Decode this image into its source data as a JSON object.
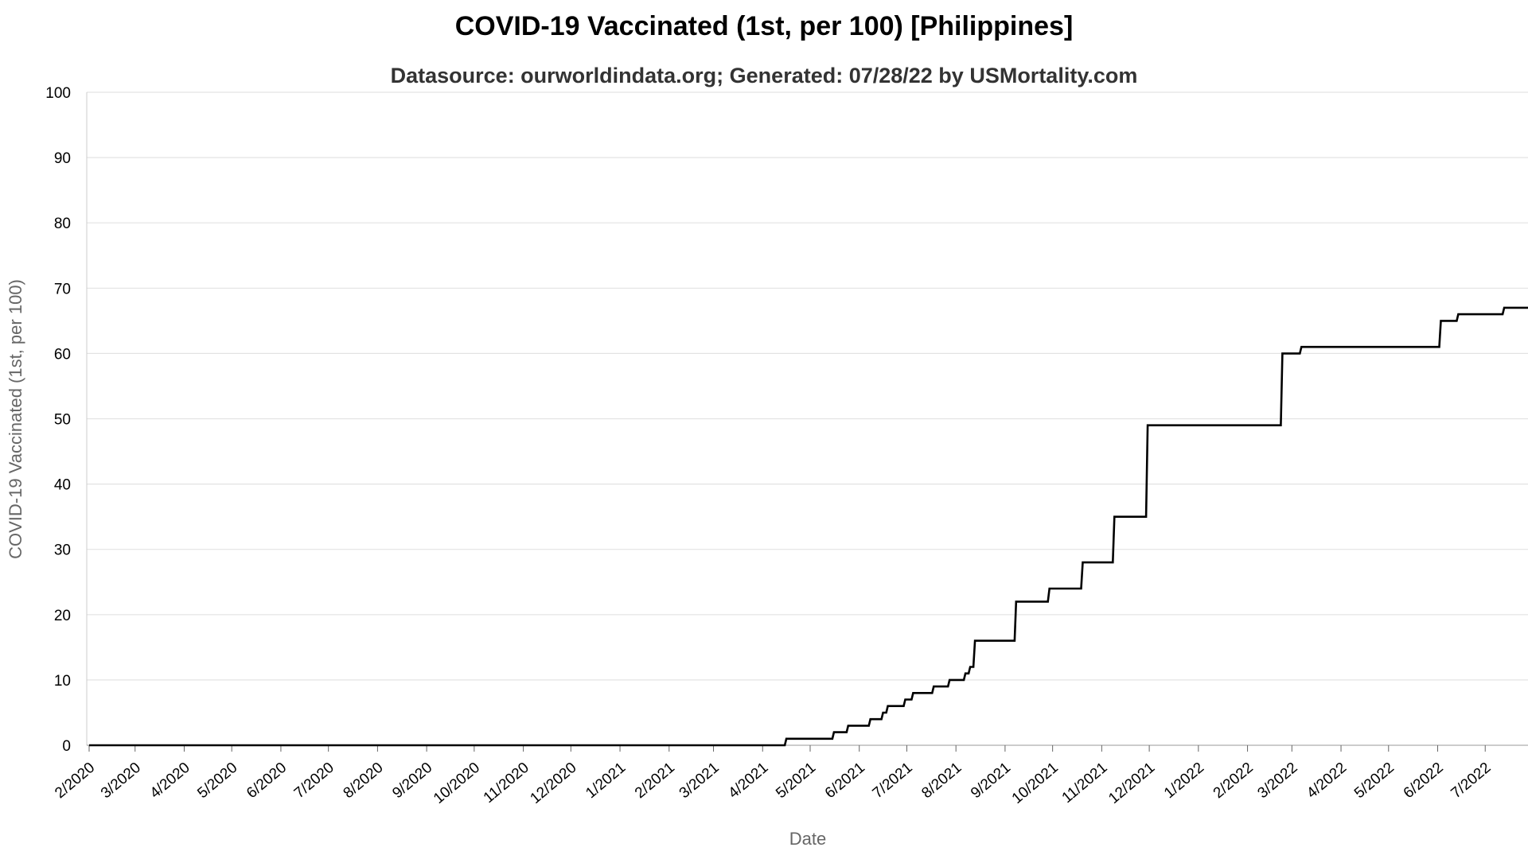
{
  "chart_data": {
    "type": "line",
    "title": "COVID-19 Vaccinated (1st, per 100) [Philippines]",
    "subtitle": "Datasource: ourworldindata.org; Generated: 07/28/22 by USMortality.com",
    "xlabel": "Date",
    "ylabel": "COVID-19 Vaccinated (1st, per 100)",
    "ylim": [
      0,
      100
    ],
    "yticks": [
      0,
      10,
      20,
      30,
      40,
      50,
      60,
      70,
      80,
      90,
      100
    ],
    "xlim": [
      "2020-02-01",
      "2022-07-28"
    ],
    "xticks": [
      {
        "date": "2020-02-01",
        "label": "2/2020"
      },
      {
        "date": "2020-03-01",
        "label": "3/2020"
      },
      {
        "date": "2020-04-01",
        "label": "4/2020"
      },
      {
        "date": "2020-05-01",
        "label": "5/2020"
      },
      {
        "date": "2020-06-01",
        "label": "6/2020"
      },
      {
        "date": "2020-07-01",
        "label": "7/2020"
      },
      {
        "date": "2020-08-01",
        "label": "8/2020"
      },
      {
        "date": "2020-09-01",
        "label": "9/2020"
      },
      {
        "date": "2020-10-01",
        "label": "10/2020"
      },
      {
        "date": "2020-11-01",
        "label": "11/2020"
      },
      {
        "date": "2020-12-01",
        "label": "12/2020"
      },
      {
        "date": "2021-01-01",
        "label": "1/2021"
      },
      {
        "date": "2021-02-01",
        "label": "2/2021"
      },
      {
        "date": "2021-03-01",
        "label": "3/2021"
      },
      {
        "date": "2021-04-01",
        "label": "4/2021"
      },
      {
        "date": "2021-05-01",
        "label": "5/2021"
      },
      {
        "date": "2021-06-01",
        "label": "6/2021"
      },
      {
        "date": "2021-07-01",
        "label": "7/2021"
      },
      {
        "date": "2021-08-01",
        "label": "8/2021"
      },
      {
        "date": "2021-09-01",
        "label": "9/2021"
      },
      {
        "date": "2021-10-01",
        "label": "10/2021"
      },
      {
        "date": "2021-11-01",
        "label": "11/2021"
      },
      {
        "date": "2021-12-01",
        "label": "12/2021"
      },
      {
        "date": "2022-01-01",
        "label": "1/2022"
      },
      {
        "date": "2022-02-01",
        "label": "2/2022"
      },
      {
        "date": "2022-03-01",
        "label": "3/2022"
      },
      {
        "date": "2022-04-01",
        "label": "4/2022"
      },
      {
        "date": "2022-05-01",
        "label": "5/2022"
      },
      {
        "date": "2022-06-01",
        "label": "6/2022"
      },
      {
        "date": "2022-07-01",
        "label": "7/2022"
      }
    ],
    "grid": true,
    "line_color": "#000000",
    "series": [
      {
        "step": true,
        "points": [
          {
            "x": "2020-02-01",
            "y": 0
          },
          {
            "x": "2021-04-15",
            "y": 0
          },
          {
            "x": "2021-04-16",
            "y": 1
          },
          {
            "x": "2021-05-15",
            "y": 1
          },
          {
            "x": "2021-05-16",
            "y": 2
          },
          {
            "x": "2021-05-24",
            "y": 2
          },
          {
            "x": "2021-05-25",
            "y": 3
          },
          {
            "x": "2021-06-07",
            "y": 3
          },
          {
            "x": "2021-06-08",
            "y": 4
          },
          {
            "x": "2021-06-15",
            "y": 4
          },
          {
            "x": "2021-06-16",
            "y": 5
          },
          {
            "x": "2021-06-18",
            "y": 5
          },
          {
            "x": "2021-06-19",
            "y": 6
          },
          {
            "x": "2021-06-29",
            "y": 6
          },
          {
            "x": "2021-06-30",
            "y": 7
          },
          {
            "x": "2021-07-04",
            "y": 7
          },
          {
            "x": "2021-07-05",
            "y": 8
          },
          {
            "x": "2021-07-17",
            "y": 8
          },
          {
            "x": "2021-07-18",
            "y": 9
          },
          {
            "x": "2021-07-27",
            "y": 9
          },
          {
            "x": "2021-07-28",
            "y": 10
          },
          {
            "x": "2021-08-06",
            "y": 10
          },
          {
            "x": "2021-08-07",
            "y": 11
          },
          {
            "x": "2021-08-09",
            "y": 11
          },
          {
            "x": "2021-08-10",
            "y": 12
          },
          {
            "x": "2021-08-12",
            "y": 12
          },
          {
            "x": "2021-08-13",
            "y": 16
          },
          {
            "x": "2021-09-07",
            "y": 16
          },
          {
            "x": "2021-09-08",
            "y": 22
          },
          {
            "x": "2021-09-28",
            "y": 22
          },
          {
            "x": "2021-09-29",
            "y": 24
          },
          {
            "x": "2021-10-19",
            "y": 24
          },
          {
            "x": "2021-10-20",
            "y": 28
          },
          {
            "x": "2021-11-08",
            "y": 28
          },
          {
            "x": "2021-11-09",
            "y": 35
          },
          {
            "x": "2021-11-29",
            "y": 35
          },
          {
            "x": "2021-11-30",
            "y": 49
          },
          {
            "x": "2022-02-22",
            "y": 49
          },
          {
            "x": "2022-02-23",
            "y": 60
          },
          {
            "x": "2022-03-06",
            "y": 60
          },
          {
            "x": "2022-03-07",
            "y": 61
          },
          {
            "x": "2022-06-02",
            "y": 61
          },
          {
            "x": "2022-06-03",
            "y": 65
          },
          {
            "x": "2022-06-13",
            "y": 65
          },
          {
            "x": "2022-06-14",
            "y": 66
          },
          {
            "x": "2022-07-12",
            "y": 66
          },
          {
            "x": "2022-07-13",
            "y": 67
          },
          {
            "x": "2022-07-28",
            "y": 67
          }
        ]
      }
    ]
  }
}
